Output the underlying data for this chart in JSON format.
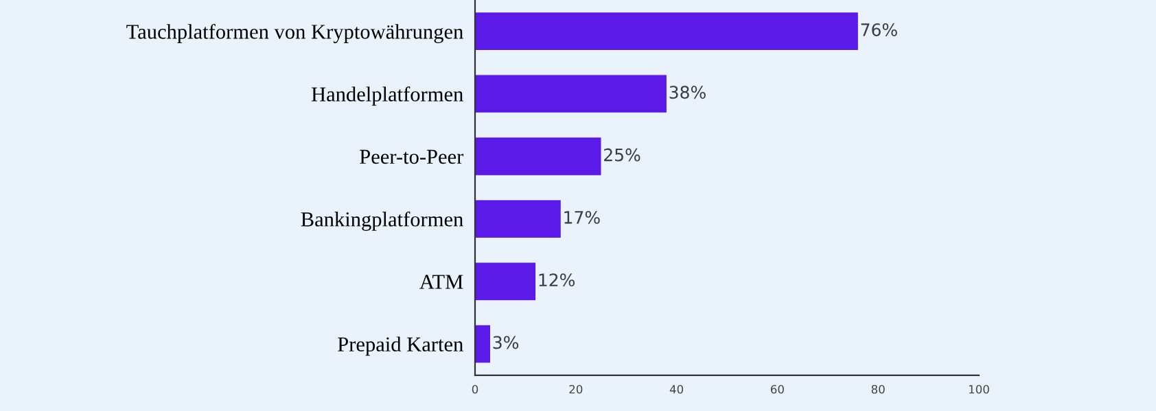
{
  "chart_data": {
    "type": "bar",
    "orientation": "horizontal",
    "categories": [
      "Tauchplatformen von Kryptowährungen",
      "Handelplatformen",
      "Peer-to-Peer",
      "Bankingplatformen",
      "ATM",
      "Prepaid Karten"
    ],
    "values": [
      76,
      38,
      25,
      17,
      12,
      3
    ],
    "color": "#5b1ae8",
    "value_labels": [
      "76%",
      "38%",
      "25%",
      "17%",
      "12%",
      "3%"
    ],
    "xlim": [
      0,
      100
    ],
    "xticks": [
      0,
      20,
      40,
      60,
      80,
      100
    ],
    "grid": false,
    "legend": false
  }
}
